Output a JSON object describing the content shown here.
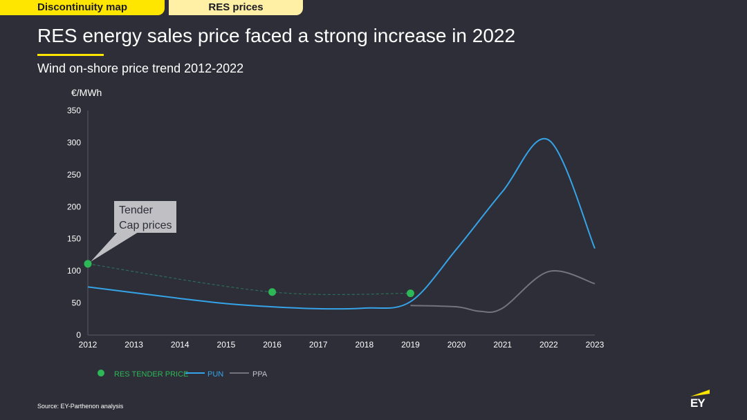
{
  "tabs": [
    {
      "label": "Discontinuity map"
    },
    {
      "label": "RES prices"
    }
  ],
  "title": "RES energy sales price faced a strong increase in 2022",
  "subtitle": "Wind on-shore price trend 2012-2022",
  "source": "Source: EY-Parthenon analysis",
  "brand": {
    "logo_text": "EY",
    "accent": "#ffe600"
  },
  "chart_data": {
    "type": "line",
    "ylabel": "€/MWh",
    "xlabel": "",
    "ylim": [
      0,
      350
    ],
    "yticks": [
      0,
      50,
      100,
      150,
      200,
      250,
      300,
      350
    ],
    "xlim": [
      2012,
      2023
    ],
    "xticks": [
      2012,
      2013,
      2014,
      2015,
      2016,
      2017,
      2018,
      2019,
      2020,
      2021,
      2022,
      2023
    ],
    "grid": false,
    "legend_position": "bottom-left",
    "series": [
      {
        "name": "RES TENDER PRICE",
        "kind": "scatter",
        "color": "#2db757",
        "points": [
          {
            "x": 2012,
            "y": 111
          },
          {
            "x": 2016,
            "y": 67
          },
          {
            "x": 2019,
            "y": 65
          }
        ]
      },
      {
        "name": "PUN",
        "kind": "line",
        "color": "#35a4e8",
        "points": [
          {
            "x": 2012,
            "y": 75
          },
          {
            "x": 2013,
            "y": 66
          },
          {
            "x": 2014,
            "y": 57
          },
          {
            "x": 2015,
            "y": 49
          },
          {
            "x": 2016,
            "y": 44
          },
          {
            "x": 2017,
            "y": 41
          },
          {
            "x": 2018,
            "y": 42
          },
          {
            "x": 2019,
            "y": 52
          },
          {
            "x": 2020,
            "y": 134
          },
          {
            "x": 2021,
            "y": 224
          },
          {
            "x": 2022,
            "y": 304
          },
          {
            "x": 2023,
            "y": 135
          }
        ]
      },
      {
        "name": "PPA",
        "kind": "line",
        "color": "#747480",
        "points": [
          {
            "x": 2019,
            "y": 46
          },
          {
            "x": 2020,
            "y": 44
          },
          {
            "x": 2020.5,
            "y": 37
          },
          {
            "x": 2021,
            "y": 42
          },
          {
            "x": 2022,
            "y": 99
          },
          {
            "x": 2023,
            "y": 80
          }
        ]
      }
    ],
    "tender_trend": [
      {
        "x": 2012,
        "y": 111
      },
      {
        "x": 2016,
        "y": 67
      },
      {
        "x": 2019,
        "y": 65
      }
    ],
    "annotations": [
      {
        "text_line1": "Tender",
        "text_line2": "Cap prices",
        "target": {
          "x": 2012,
          "y": 111
        }
      }
    ]
  }
}
